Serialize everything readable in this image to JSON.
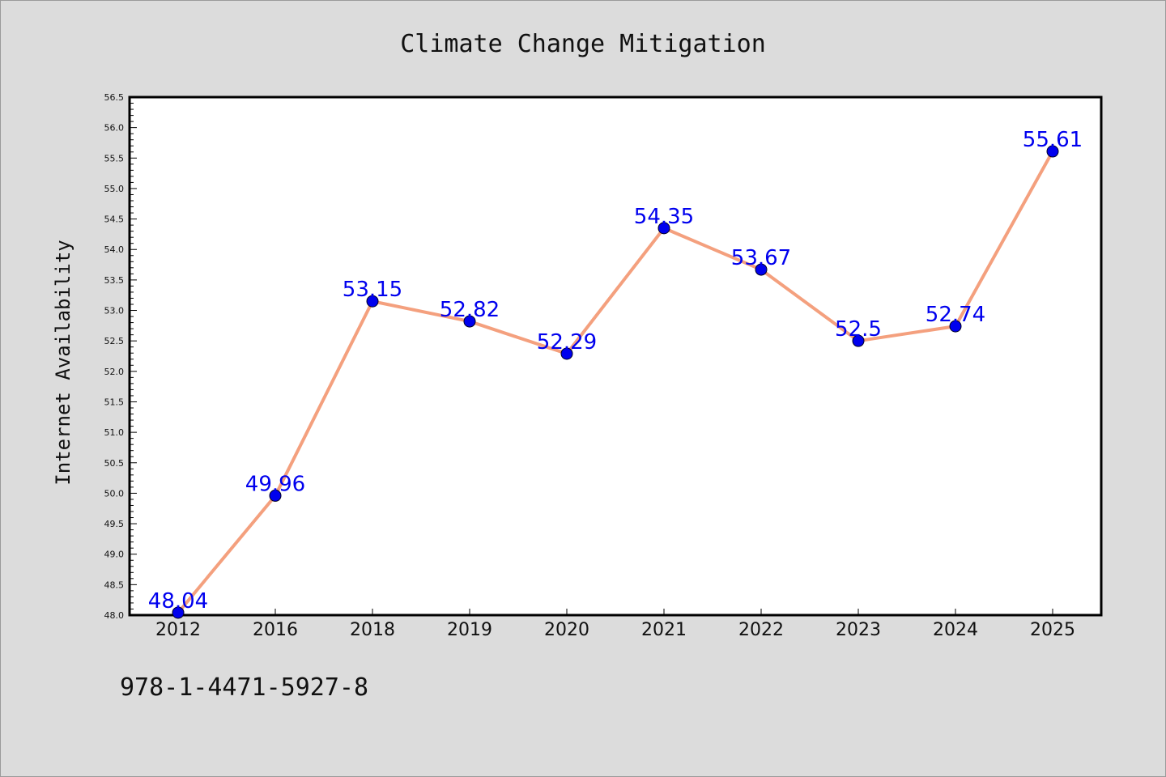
{
  "footer": {
    "code": "978-1-4471-5927-8"
  },
  "chart_data": {
    "type": "line",
    "title": "Climate Change Mitigation",
    "xlabel": "",
    "ylabel": "Internet Availability",
    "categories": [
      "2012",
      "2016",
      "2018",
      "2019",
      "2020",
      "2021",
      "2022",
      "2023",
      "2024",
      "2025"
    ],
    "series": [
      {
        "values": [
          48.04,
          49.96,
          53.15,
          52.82,
          52.29,
          54.35,
          53.67,
          52.5,
          52.74,
          55.61
        ]
      }
    ],
    "data_labels": [
      "48.04",
      "49.96",
      "53.15",
      "52.82",
      "52.29",
      "54.35",
      "53.67",
      "52.5",
      "52.74",
      "55.61"
    ],
    "ylim": [
      48.0,
      56.5
    ],
    "yticks": [
      "48.0",
      "48.5",
      "49.0",
      "49.5",
      "50.0",
      "50.5",
      "51.0",
      "51.5",
      "52.0",
      "52.5",
      "53.0",
      "53.5",
      "54.0",
      "54.5",
      "55.0",
      "55.5",
      "56.0",
      "56.5"
    ],
    "grid": false,
    "line_color": "#f4a07e",
    "marker_color": "#0000ee",
    "label_color": "#0000ee"
  }
}
